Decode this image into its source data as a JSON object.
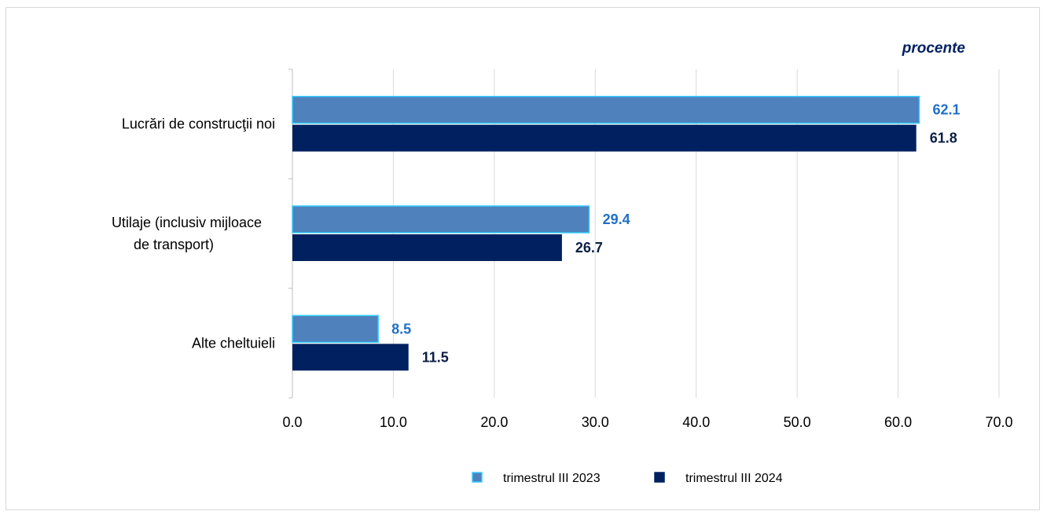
{
  "chart_data": {
    "type": "bar",
    "orientation": "horizontal",
    "unit_label": "procente",
    "categories": [
      [
        "Lucrări de construcţii noi"
      ],
      [
        "Utilaje (inclusiv mijloace",
        "de transport)"
      ],
      [
        "Alte cheltuieli"
      ]
    ],
    "series": [
      {
        "name": "trimestrul III 2023",
        "values": [
          62.1,
          29.4,
          8.5
        ],
        "color": "#4f81bd",
        "stroke": "#33ccff",
        "label_color": "#1f6fc6"
      },
      {
        "name": "trimestrul III 2024",
        "values": [
          61.8,
          26.7,
          11.5
        ],
        "color": "#002060",
        "stroke": "#002060",
        "label_color": "#0b1f44"
      }
    ],
    "xlim": [
      0,
      70
    ],
    "x_ticks": [
      0,
      10,
      20,
      30,
      40,
      50,
      60,
      70
    ],
    "tick_format_decimals": 1,
    "value_format_decimals": 1,
    "grid": "vertical",
    "legend_position": "bottom",
    "colors": {
      "unit_label": "#002060",
      "grid": "#d9d9d9",
      "axis": "#bfbfbf"
    }
  }
}
